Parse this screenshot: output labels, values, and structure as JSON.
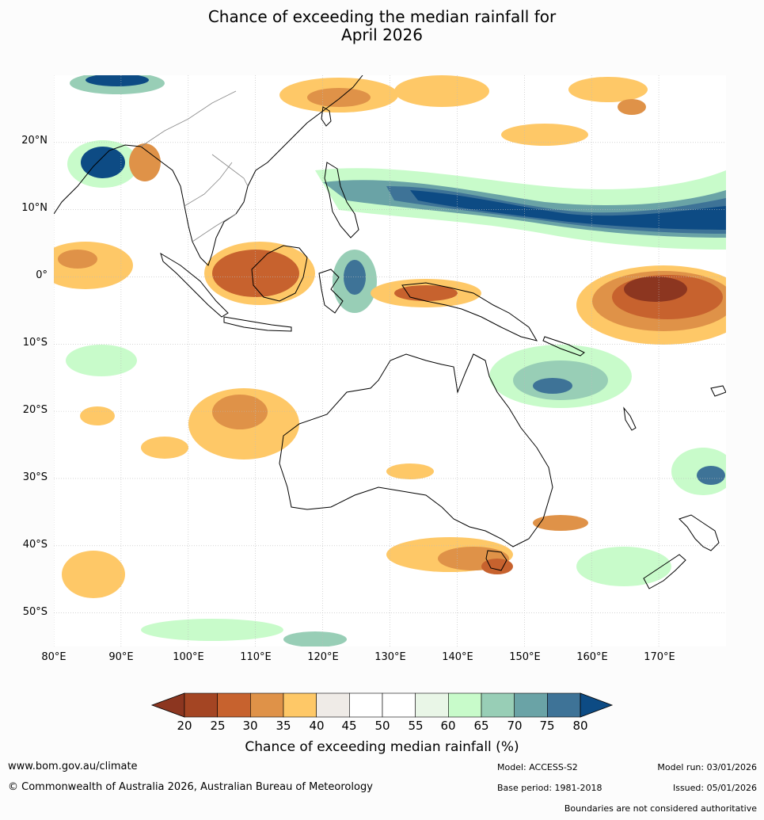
{
  "title": {
    "line1": "Chance of exceeding the median rainfall for",
    "line2": "April 2026"
  },
  "map": {
    "lat_labels": [
      "20°N",
      "10°N",
      "0°",
      "10°S",
      "20°S",
      "30°S",
      "40°S",
      "50°S"
    ],
    "lat_values": [
      20,
      10,
      0,
      -10,
      -20,
      -30,
      -40,
      -50
    ],
    "lon_labels": [
      "80°E",
      "90°E",
      "100°E",
      "110°E",
      "120°E",
      "130°E",
      "140°E",
      "150°E",
      "160°E",
      "170°E"
    ],
    "lon_values": [
      80,
      90,
      100,
      110,
      120,
      130,
      140,
      150,
      160,
      170
    ],
    "extent": {
      "lon": [
        80,
        180
      ],
      "lat": [
        -55,
        30
      ]
    },
    "background_color": "#ffffff",
    "coastline_color": "#000000",
    "border_color": "#888888",
    "gridline_color": "#bbbbbb"
  },
  "colorbar": {
    "ticks": [
      "20",
      "25",
      "30",
      "35",
      "40",
      "45",
      "50",
      "55",
      "60",
      "65",
      "70",
      "75",
      "80"
    ],
    "colors": [
      "#a44523",
      "#c7622e",
      "#df9248",
      "#fec867",
      "#efebe7",
      "#ffffff",
      "#ffffff",
      "#e9f6e7",
      "#c8fbca",
      "#98ceb6",
      "#6aa3a6",
      "#3e7397"
    ],
    "under_color": "#8c3620",
    "over_color": "#0d4b84",
    "label": "Chance of exceeding median rainfall (%)"
  },
  "footer": {
    "url": "www.bom.gov.au/climate",
    "copyright": "© Commonwealth of Australia 2026, Australian Bureau of Meteorology",
    "model": "Model: ACCESS-S2",
    "base_period": "Base period: 1981-2018",
    "model_run": "Model run: 03/01/2026",
    "issued": "Issued: 05/01/2026",
    "boundaries": "Boundaries are not considered authoritative"
  }
}
